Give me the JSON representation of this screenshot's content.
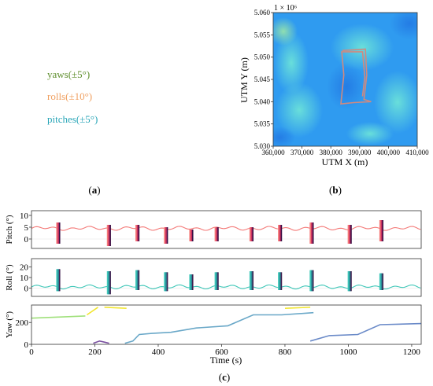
{
  "legend_text": [
    {
      "label": "yaws(±5°)",
      "color": "#5f8f2e"
    },
    {
      "label": "rolls(±10°)",
      "color": "#f0a060"
    },
    {
      "label": "pitches(±5°)",
      "color": "#2aa6b8"
    }
  ],
  "panel_labels": {
    "a": "a",
    "b": "b",
    "c": "c"
  },
  "chart_data": [
    {
      "type": "heatmap",
      "panel": "b",
      "xlabel": "UTM X (m)",
      "ylabel": "UTM Y (m)",
      "y_scale_label": "1 × 10⁶",
      "xlim": [
        360000,
        410000
      ],
      "ylim": [
        5.03,
        5.06
      ],
      "x_ticks": [
        "360,000",
        "370,000",
        "380,000",
        "390,000",
        "400,000",
        "410,000"
      ],
      "y_ticks": [
        "5.030",
        "5.035",
        "5.040",
        "5.045",
        "5.050",
        "5.055",
        "5.060"
      ],
      "colors": {
        "base": "#2f9bf0",
        "light": "#63dce0",
        "track": "#d08a80"
      },
      "track": [
        [
          384000,
          5.0515
        ],
        [
          392000,
          5.0518
        ],
        [
          392500,
          5.046
        ],
        [
          391500,
          5.0405
        ],
        [
          394000,
          5.04
        ],
        [
          388000,
          5.0398
        ],
        [
          383500,
          5.0395
        ],
        [
          384500,
          5.046
        ],
        [
          383800,
          5.0512
        ],
        [
          391000,
          5.0512
        ],
        [
          391800,
          5.0455
        ],
        [
          391000,
          5.0412
        ]
      ]
    },
    {
      "type": "line",
      "panel": "c",
      "xlabel": "Time (s)",
      "xlim": [
        0,
        1230
      ],
      "x_ticks": [
        0,
        200,
        400,
        600,
        800,
        1000,
        1200
      ],
      "subplots": [
        {
          "ylabel": "Pitch (°)",
          "ylim": [
            -4,
            12
          ],
          "y_ticks": [
            0,
            5,
            10
          ],
          "colors": [
            "#f47a78",
            "#c83060",
            "#3a0f45"
          ],
          "baseline": 4.5,
          "spikes": [
            [
              80,
              7,
              -2
            ],
            [
              240,
              6,
              -3
            ],
            [
              330,
              6,
              -1
            ],
            [
              420,
              5,
              -2
            ],
            [
              500,
              4,
              -1
            ],
            [
              580,
              5,
              -1
            ],
            [
              690,
              5,
              -1
            ],
            [
              780,
              6,
              -1
            ],
            [
              880,
              7,
              -2
            ],
            [
              1000,
              6,
              -2
            ],
            [
              1100,
              8,
              -1
            ]
          ]
        },
        {
          "ylabel": "Roll (°)",
          "ylim": [
            -8,
            28
          ],
          "y_ticks": [
            0,
            10,
            20
          ],
          "colors": [
            "#3fc7b8",
            "#2a8a98",
            "#402050"
          ],
          "baseline": 1,
          "spikes": [
            [
              80,
              18,
              -3
            ],
            [
              240,
              16,
              -6
            ],
            [
              330,
              17,
              -2
            ],
            [
              420,
              15,
              -3
            ],
            [
              500,
              13,
              -2
            ],
            [
              580,
              15,
              -2
            ],
            [
              690,
              16,
              -2
            ],
            [
              780,
              15,
              -2
            ],
            [
              880,
              17,
              -3
            ],
            [
              1000,
              16,
              -3
            ],
            [
              1100,
              14,
              -2
            ]
          ]
        },
        {
          "ylabel": "Yaw (°)",
          "ylim": [
            0,
            360
          ],
          "y_ticks": [
            0,
            200
          ],
          "colors": [
            "#9fe07a",
            "#f2e630",
            "#6a8ac8",
            "#7a50a0"
          ],
          "segments": [
            {
              "points": [
                [
                  0,
                  240
                ],
                [
                  170,
                  260
                ]
              ],
              "color": "#9fe07a"
            },
            {
              "points": [
                [
                  175,
                  270
                ],
                [
                  210,
                  340
                ]
              ],
              "color": "#f2e630"
            },
            {
              "points": [
                [
                  230,
                  340
                ],
                [
                  300,
                  330
                ]
              ],
              "color": "#f2e630"
            },
            {
              "points": [
                [
                  195,
                  10
                ],
                [
                  215,
                  30
                ],
                [
                  230,
                  20
                ],
                [
                  245,
                  10
                ]
              ],
              "color": "#7a50a0"
            },
            {
              "points": [
                [
                  295,
                  10
                ],
                [
                  320,
                  30
                ],
                [
                  340,
                  90
                ],
                [
                  380,
                  100
                ],
                [
                  440,
                  110
                ],
                [
                  520,
                  150
                ],
                [
                  620,
                  170
                ],
                [
                  700,
                  270
                ],
                [
                  790,
                  270
                ],
                [
                  890,
                  290
                ]
              ],
              "color": "#6aa8c8"
            },
            {
              "points": [
                [
                  800,
                  330
                ],
                [
                  880,
                  340
                ]
              ],
              "color": "#f2e630"
            },
            {
              "points": [
                [
                  880,
                  30
                ],
                [
                  940,
                  80
                ],
                [
                  1030,
                  90
                ],
                [
                  1100,
                  180
                ],
                [
                  1230,
                  190
                ]
              ],
              "color": "#6a8ac8"
            }
          ]
        }
      ]
    }
  ]
}
